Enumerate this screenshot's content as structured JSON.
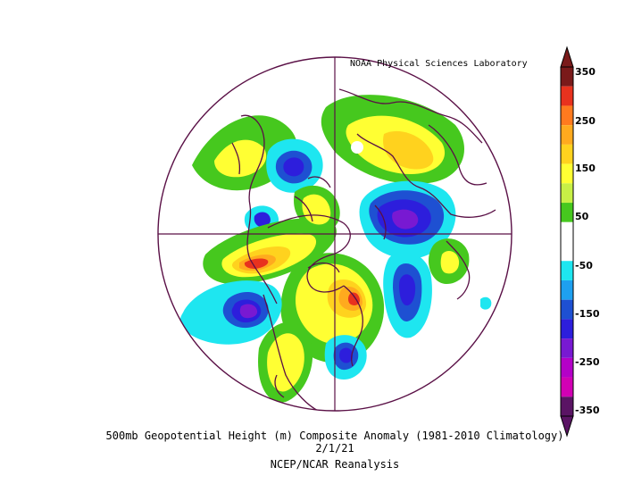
{
  "credit": "NOAA Physical Sciences Laboratory",
  "caption": {
    "line1": "500mb Geopotential Height (m) Composite Anomaly (1981-2010 Climatology)",
    "line2": "2/1/21",
    "line3": "NCEP/NCAR Reanalysis"
  },
  "colorbar": {
    "labels": [
      "350",
      "250",
      "150",
      "50",
      "-50",
      "-150",
      "-250",
      "-350"
    ],
    "colors": [
      "#7a1a1a",
      "#e8321e",
      "#ff7a1e",
      "#ffaa1e",
      "#ffd21e",
      "#ffff33",
      "#c8f046",
      "#46c81e",
      "#ffffff",
      "#ffffff",
      "#1ee6f0",
      "#1ea0f0",
      "#1e50d2",
      "#2d1edc",
      "#7819d2",
      "#b400c8",
      "#d200b4",
      "#5a1464"
    ]
  },
  "map": {
    "projection": "north-polar-stereographic",
    "land_outline_color": "#5a1046"
  }
}
